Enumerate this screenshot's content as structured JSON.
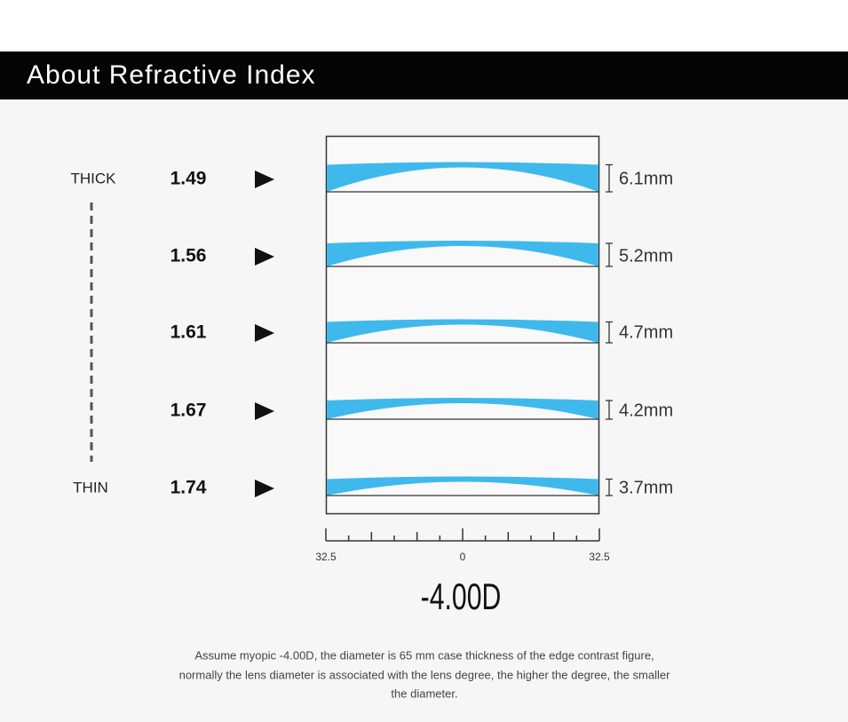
{
  "header": {
    "title": "About Refractive Index"
  },
  "scale_labels": {
    "thick": "THICK",
    "thin": "THIN"
  },
  "rows": [
    {
      "index": "1.49",
      "thickness": "6.1mm"
    },
    {
      "index": "1.56",
      "thickness": "5.2mm"
    },
    {
      "index": "1.61",
      "thickness": "4.7mm"
    },
    {
      "index": "1.67",
      "thickness": "4.2mm"
    },
    {
      "index": "1.74",
      "thickness": "3.7mm"
    }
  ],
  "ruler": {
    "left": "32.5",
    "center": "0",
    "right": "32.5"
  },
  "power": "-4.00D",
  "caption": [
    "Assume myopic -4.00D, the diameter is 65 mm case thickness of the edge contrast figure,",
    "normally the lens diameter is associated with the lens degree, the higher the degree, the smaller",
    "the diameter."
  ]
}
